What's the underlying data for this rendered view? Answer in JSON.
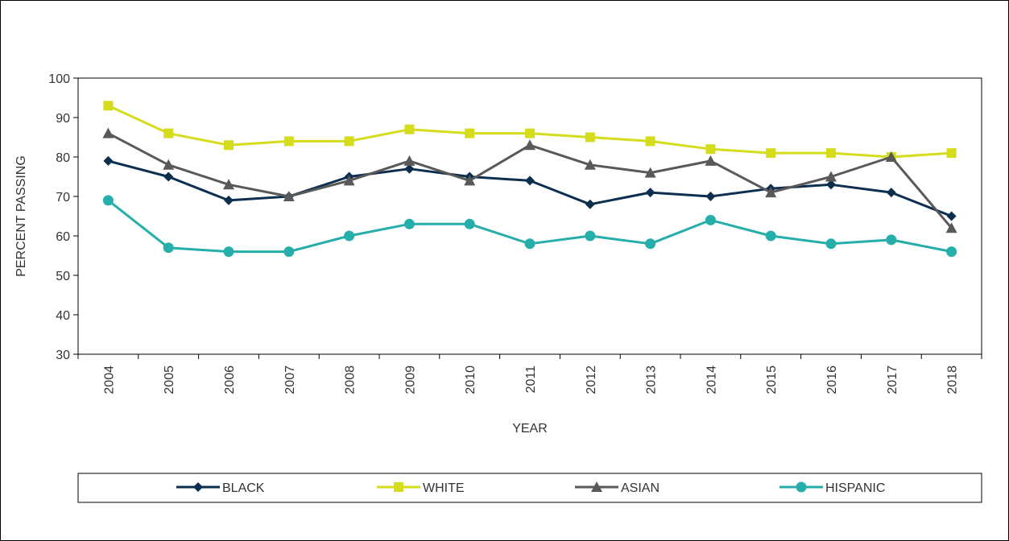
{
  "chart_data": {
    "type": "line",
    "title": "",
    "xlabel": "YEAR",
    "ylabel": "PERCENT PASSING",
    "ylim": [
      30,
      100
    ],
    "yticks": [
      "30",
      "40",
      "50",
      "60",
      "70",
      "80",
      "90",
      "100"
    ],
    "categories": [
      "2004",
      "2005",
      "2006",
      "2007",
      "2008",
      "2009",
      "2010",
      "2011",
      "2012",
      "2013",
      "2014",
      "2015",
      "2016",
      "2017",
      "2018"
    ],
    "grid": false,
    "legend": "bottom",
    "series": [
      {
        "name": "BLACK",
        "color": "#0d2f4f",
        "marker": "diamond",
        "values": [
          79,
          75,
          69,
          70,
          75,
          77,
          75,
          74,
          68,
          71,
          70,
          72,
          73,
          71,
          65
        ]
      },
      {
        "name": "WHITE",
        "color": "#d4dc1c",
        "marker": "square",
        "values": [
          93,
          86,
          83,
          84,
          84,
          87,
          86,
          86,
          85,
          84,
          82,
          81,
          81,
          80,
          81
        ]
      },
      {
        "name": "ASIAN",
        "color": "#595959",
        "marker": "triangle",
        "values": [
          86,
          78,
          73,
          70,
          74,
          79,
          74,
          83,
          78,
          76,
          79,
          71,
          75,
          80,
          62
        ]
      },
      {
        "name": "HISPANIC",
        "color": "#26aeaa",
        "marker": "circle",
        "values": [
          69,
          57,
          56,
          56,
          60,
          63,
          63,
          58,
          60,
          58,
          64,
          60,
          58,
          59,
          56
        ]
      }
    ]
  }
}
